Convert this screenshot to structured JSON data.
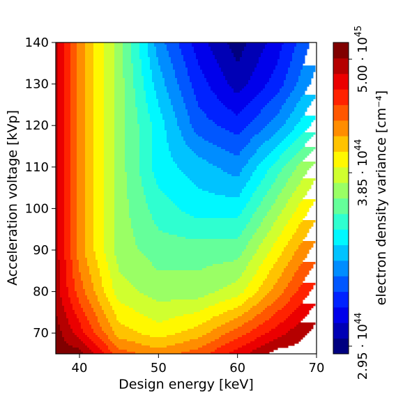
{
  "chart_data": {
    "type": "heatmap",
    "subtype": "filled-contour",
    "title": "",
    "xlabel": "Design energy [keV]",
    "ylabel": "Acceleration voltage [kVp]",
    "xlim": [
      37,
      70
    ],
    "ylim": [
      65,
      140
    ],
    "x_ticks": [
      40,
      50,
      60,
      70
    ],
    "y_ticks": [
      70,
      80,
      90,
      100,
      110,
      120,
      130,
      140
    ],
    "colormap": "jet",
    "grid": false,
    "colorbar": {
      "label": "electron density variance [cm⁻⁴]",
      "ticks": [
        {
          "value": 2.95e+44,
          "mantissa": "2.95",
          "exponent": "44"
        },
        {
          "value": 3.85e+44,
          "mantissa": "3.85",
          "exponent": "44"
        },
        {
          "value": 5e+45,
          "mantissa": "5.00",
          "exponent": "45"
        }
      ],
      "levels": 20
    },
    "x": [
      37,
      40,
      45,
      50,
      55,
      60,
      65,
      70
    ],
    "y": [
      65,
      70,
      80,
      90,
      100,
      110,
      120,
      130,
      140
    ],
    "z_level_index": [
      [
        19,
        19,
        15,
        14,
        15,
        17,
        19,
        19
      ],
      [
        19,
        17,
        13,
        12,
        13,
        15,
        17,
        19
      ],
      [
        18,
        15,
        11,
        10,
        10,
        11,
        14,
        17
      ],
      [
        18,
        14,
        10,
        9,
        9,
        9,
        12,
        15
      ],
      [
        18,
        14,
        10,
        8,
        7,
        7,
        10,
        13
      ],
      [
        18,
        14,
        10,
        7,
        6,
        5,
        8,
        11
      ],
      [
        18,
        14,
        10,
        7,
        4,
        3,
        5,
        8
      ],
      [
        18,
        14,
        10,
        6,
        3,
        1,
        3,
        6
      ],
      [
        18,
        14,
        10,
        5,
        2,
        0,
        2,
        5
      ]
    ]
  }
}
